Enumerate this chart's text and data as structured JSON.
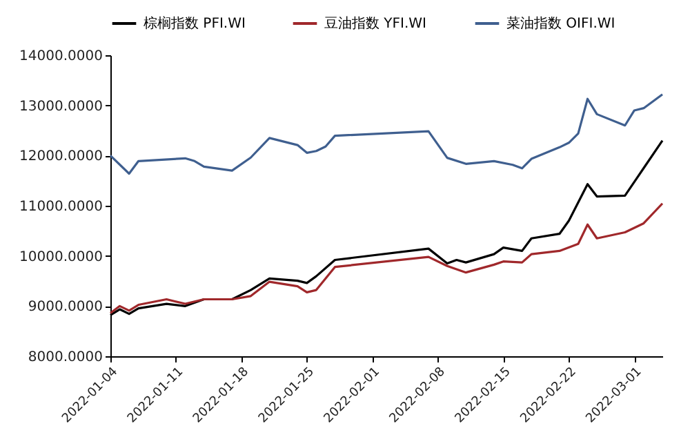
{
  "chart_data": {
    "type": "line",
    "legend": "top",
    "grid": false,
    "marker": "none",
    "line_style": "solid",
    "xlim": [
      "2022-01-04",
      "2022-03-04"
    ],
    "xticks": [
      "2022-01-04",
      "2022-01-11",
      "2022-01-18",
      "2022-01-25",
      "2022-02-01",
      "2022-02-08",
      "2022-02-15",
      "2022-02-22",
      "2022-03-01"
    ],
    "ylim": [
      8000,
      14000
    ],
    "yticks": [
      {
        "value": 8000,
        "label": "8000.0000"
      },
      {
        "value": 9000,
        "label": "9000.0000"
      },
      {
        "value": 10000,
        "label": "10000.0000"
      },
      {
        "value": 11000,
        "label": "11000.0000"
      },
      {
        "value": 12000,
        "label": "12000.0000"
      },
      {
        "value": 13000,
        "label": "13000.0000"
      },
      {
        "value": 14000,
        "label": "14000.0000"
      }
    ],
    "series": [
      {
        "name": "棕榈指数 PFI.WI",
        "color": "#000000",
        "x": [
          "2022-01-04",
          "2022-01-05",
          "2022-01-06",
          "2022-01-07",
          "2022-01-10",
          "2022-01-12",
          "2022-01-14",
          "2022-01-17",
          "2022-01-19",
          "2022-01-21",
          "2022-01-24",
          "2022-01-25",
          "2022-01-26",
          "2022-01-28",
          "2022-02-07",
          "2022-02-09",
          "2022-02-10",
          "2022-02-11",
          "2022-02-14",
          "2022-02-15",
          "2022-02-17",
          "2022-02-18",
          "2022-02-21",
          "2022-02-22",
          "2022-02-24",
          "2022-02-25",
          "2022-02-28",
          "2022-03-02",
          "2022-03-04"
        ],
        "values": [
          8820,
          8935,
          8845,
          8955,
          9045,
          9000,
          9135,
          9135,
          9320,
          9550,
          9505,
          9460,
          9595,
          9920,
          10145,
          9850,
          9920,
          9870,
          10035,
          10165,
          10100,
          10350,
          10440,
          10700,
          11430,
          11185,
          11200,
          11750,
          12300
        ]
      },
      {
        "name": "豆油指数 YFI.WI",
        "color": "#a0282b",
        "x": [
          "2022-01-04",
          "2022-01-05",
          "2022-01-06",
          "2022-01-07",
          "2022-01-10",
          "2022-01-12",
          "2022-01-14",
          "2022-01-17",
          "2022-01-19",
          "2022-01-21",
          "2022-01-24",
          "2022-01-25",
          "2022-01-26",
          "2022-01-28",
          "2022-02-07",
          "2022-02-09",
          "2022-02-11",
          "2022-02-14",
          "2022-02-15",
          "2022-02-17",
          "2022-02-18",
          "2022-02-21",
          "2022-02-23",
          "2022-02-24",
          "2022-02-25",
          "2022-02-28",
          "2022-03-02",
          "2022-03-04"
        ],
        "values": [
          8860,
          9000,
          8910,
          9025,
          9135,
          9045,
          9135,
          9135,
          9200,
          9485,
          9395,
          9275,
          9320,
          9780,
          9980,
          9800,
          9670,
          9825,
          9890,
          9870,
          10035,
          10100,
          10240,
          10625,
          10350,
          10470,
          10650,
          11045
        ]
      },
      {
        "name": "菜油指数 OIFI.WI",
        "color": "#3f5f8f",
        "x": [
          "2022-01-04",
          "2022-01-06",
          "2022-01-07",
          "2022-01-12",
          "2022-01-13",
          "2022-01-14",
          "2022-01-17",
          "2022-01-19",
          "2022-01-21",
          "2022-01-24",
          "2022-01-25",
          "2022-01-26",
          "2022-01-27",
          "2022-01-28",
          "2022-02-07",
          "2022-02-09",
          "2022-02-11",
          "2022-02-14",
          "2022-02-16",
          "2022-02-17",
          "2022-02-18",
          "2022-02-21",
          "2022-02-22",
          "2022-02-23",
          "2022-02-24",
          "2022-02-25",
          "2022-02-28",
          "2022-03-01",
          "2022-03-02",
          "2022-03-04"
        ],
        "values": [
          12000,
          11640,
          11890,
          11945,
          11890,
          11780,
          11700,
          11960,
          12350,
          12210,
          12055,
          12090,
          12180,
          12395,
          12485,
          11955,
          11835,
          11890,
          11815,
          11745,
          11935,
          12165,
          12255,
          12440,
          13130,
          12825,
          12600,
          12900,
          12945,
          13220
        ]
      }
    ]
  }
}
